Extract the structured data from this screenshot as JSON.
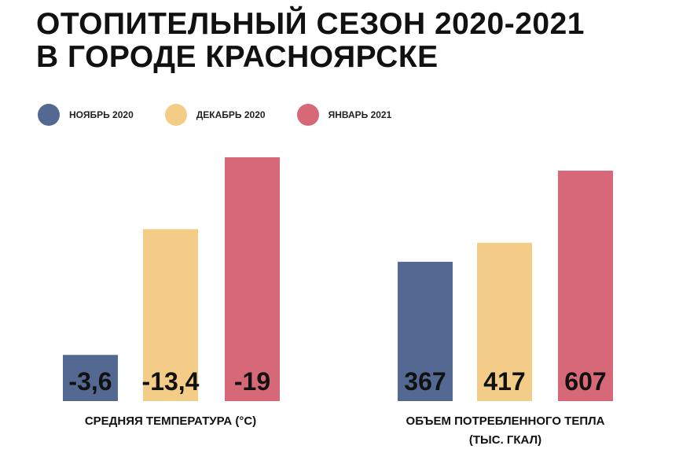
{
  "title": {
    "line1": "ОТОПИТЕЛЬНЫЙ СЕЗОН 2020-2021",
    "line2": "В ГОРОДЕ КРАСНОЯРСКЕ"
  },
  "colors": {
    "november": "#536992",
    "december": "#f3cd88",
    "january": "#d76878"
  },
  "chart_data": [
    {
      "type": "bar",
      "categories": [
        "НОЯБРЬ 2020",
        "ДЕКАБРЬ 2020",
        "ЯНВАРЬ 2021"
      ],
      "values": [
        -3.6,
        -13.4,
        -19
      ],
      "value_labels": [
        "-3,6",
        "-13,4",
        "-19"
      ],
      "xlabel": "СРЕДНЯЯ ТЕМПЕРАТУРА (°С)",
      "ylim": [
        0,
        -19
      ],
      "grid": false,
      "legend": "top-left"
    },
    {
      "type": "bar",
      "categories": [
        "НОЯБРЬ 2020",
        "ДЕКАБРЬ 2020",
        "ЯНВАРЬ 2021"
      ],
      "values": [
        367,
        417,
        607
      ],
      "value_labels": [
        "367",
        "417",
        "607"
      ],
      "xlabel": "ОБЪЕМ ПОТРЕБЛЕННОГО ТЕПЛА",
      "xlabel_line2": "(ТЫС. ГКАЛ)",
      "ylim": [
        0,
        607
      ],
      "grid": false,
      "legend": "top-left"
    }
  ],
  "legend": {
    "items": [
      {
        "label": "НОЯБРЬ 2020",
        "color": "#536992"
      },
      {
        "label": "ДЕКАБРЬ 2020",
        "color": "#f3cd88"
      },
      {
        "label": "ЯНВАРЬ 2021",
        "color": "#d76878"
      }
    ]
  }
}
